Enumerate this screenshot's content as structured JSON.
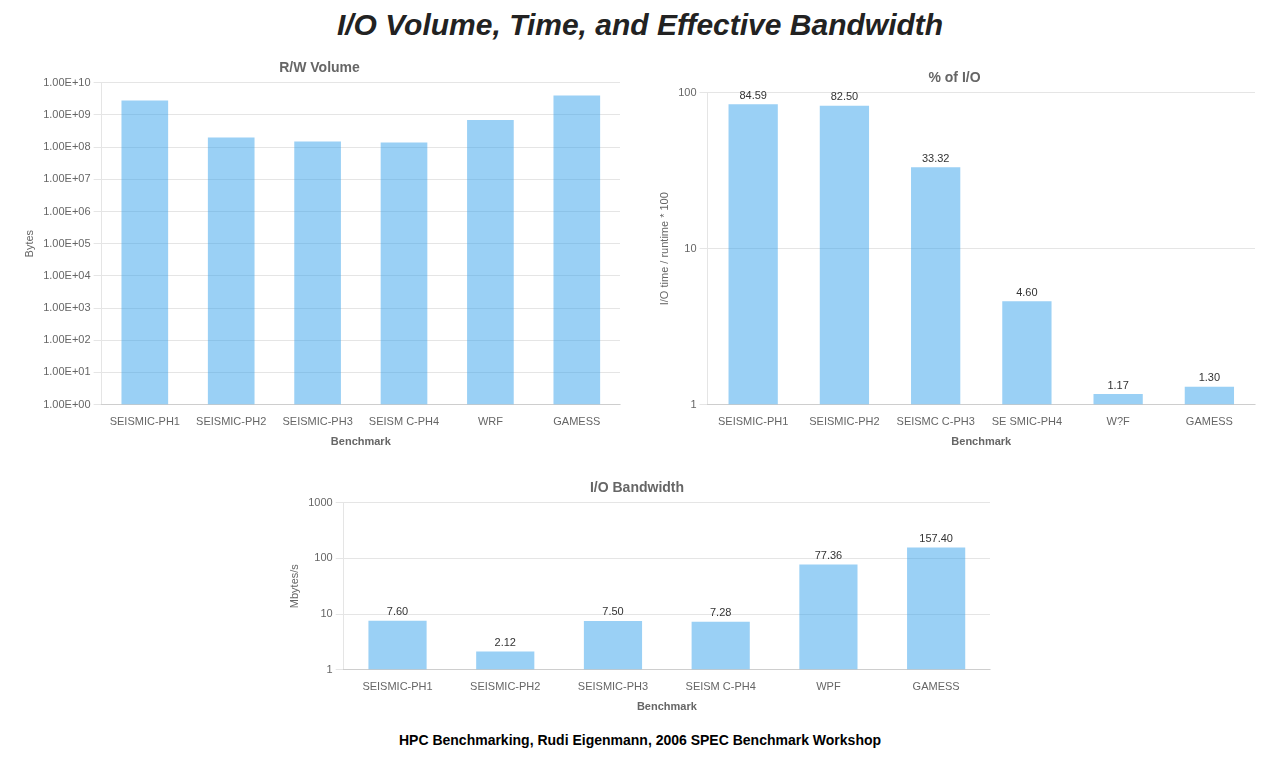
{
  "title": "I/O Volume, Time, and Effective Bandwidth",
  "subtitle": "HPC Benchmarking, Rudi Eigenmann, 2006 SPEC Benchmark Workshop",
  "chart_data": [
    {
      "type": "bar",
      "title": "R/W Volume",
      "xlabel": "Benchmark",
      "ylabel": "Bytes",
      "categories": [
        "SEISMIC-PH1",
        "SEISMIC-PH2",
        "SEISMIC-PH3",
        "SEISM C-PH4",
        "WRF",
        "GAMESS"
      ],
      "values": [
        2800000000.0,
        200000000.0,
        150000000.0,
        140000000.0,
        700000000.0,
        4000000000.0
      ],
      "log": "y",
      "grid": true,
      "ylim": [
        1,
        10000000000.0
      ],
      "yticks": [
        {
          "value": 1,
          "label": "1.00E+00"
        },
        {
          "value": 10,
          "label": "1.00E+01"
        },
        {
          "value": 100,
          "label": "1.00E+02"
        },
        {
          "value": 1000,
          "label": "1.00E+03"
        },
        {
          "value": 10000,
          "label": "1.00E+04"
        },
        {
          "value": 100000,
          "label": "1.00E+05"
        },
        {
          "value": 1000000,
          "label": "1.00E+06"
        },
        {
          "value": 10000000,
          "label": "1.00E+07"
        },
        {
          "value": 100000000,
          "label": "1.00E+08"
        },
        {
          "value": 1000000000,
          "label": "1.00E+09"
        },
        {
          "value": 10000000000,
          "label": "1.00E+10"
        }
      ]
    },
    {
      "type": "bar",
      "title": "% of I/O",
      "xlabel": "Benchmark",
      "ylabel": "I/O time / runtime * 100",
      "categories": [
        "SEISMIC-PH1",
        "SEISMIC-PH2",
        "SEISMC C-PH3",
        "SE SMIC-PH4",
        "W?F",
        "GAMESS"
      ],
      "values": [
        84.59,
        82.5,
        33.32,
        4.6,
        1.17,
        1.3
      ],
      "value_labels": [
        "84.59",
        "82.50",
        "33.32",
        "4.60",
        "1.17",
        "1.30"
      ],
      "data_labels": true,
      "log": "y",
      "grid": true,
      "ylim": [
        1,
        100
      ],
      "yticks": [
        1,
        10,
        100
      ]
    },
    {
      "type": "bar",
      "title": "I/O Bandwidth",
      "xlabel": "Benchmark",
      "ylabel": "Mbytes/s",
      "categories": [
        "SEISMIC-PH1",
        "SEISMIC-PH2",
        "SEISMIC-PH3",
        "SEISM C-PH4",
        "WPF",
        "GAMESS"
      ],
      "values": [
        7.6,
        2.12,
        7.5,
        7.28,
        77.36,
        157.4
      ],
      "value_labels": [
        "7.60",
        "2.12",
        "7.50",
        "7.28",
        "77.36",
        "157.40"
      ],
      "data_labels": true,
      "log": "y",
      "grid": true,
      "ylim": [
        1,
        1000
      ],
      "yticks": [
        1,
        10,
        100,
        1000
      ]
    }
  ]
}
